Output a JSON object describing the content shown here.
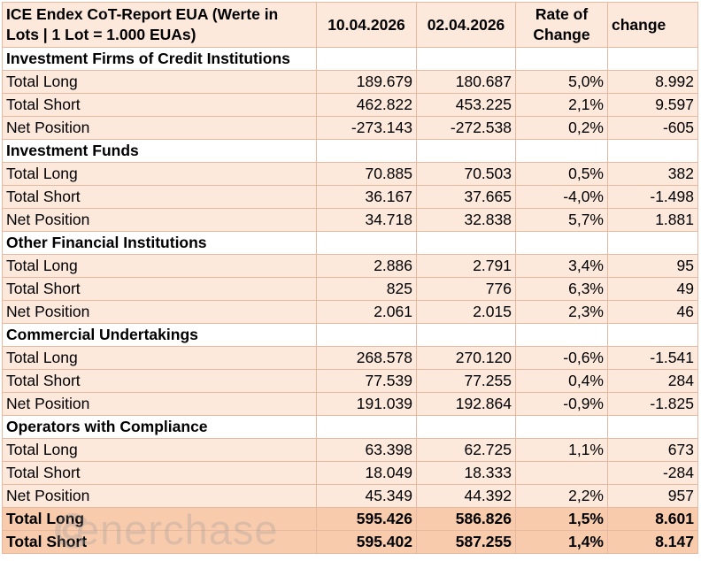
{
  "header": {
    "title": "ICE Endex CoT-Report EUA (Werte in Lots | 1 Lot = 1.000 EUAs)",
    "date1": "10.04.2026",
    "date2": "02.04.2026",
    "rate_line1": "Rate of",
    "rate_line2": "Change",
    "change": "change"
  },
  "sections": [
    {
      "name": "Investment Firms of Credit Institutions",
      "rows": [
        {
          "label": "Total Long",
          "v1": "189.679",
          "v2": "180.687",
          "rate": "5,0%",
          "change": "8.992"
        },
        {
          "label": "Total Short",
          "v1": "462.822",
          "v2": "453.225",
          "rate": "2,1%",
          "change": "9.597"
        },
        {
          "label": "Net Position",
          "v1": "-273.143",
          "v2": "-272.538",
          "rate": "0,2%",
          "change": "-605"
        }
      ]
    },
    {
      "name": "Investment Funds",
      "rows": [
        {
          "label": "Total Long",
          "v1": "70.885",
          "v2": "70.503",
          "rate": "0,5%",
          "change": "382"
        },
        {
          "label": "Total Short",
          "v1": "36.167",
          "v2": "37.665",
          "rate": "-4,0%",
          "change": "-1.498"
        },
        {
          "label": "Net Position",
          "v1": "34.718",
          "v2": "32.838",
          "rate": "5,7%",
          "change": "1.881"
        }
      ]
    },
    {
      "name": "Other Financial Institutions",
      "rows": [
        {
          "label": "Total Long",
          "v1": "2.886",
          "v2": "2.791",
          "rate": "3,4%",
          "change": "95"
        },
        {
          "label": "Total Short",
          "v1": "825",
          "v2": "776",
          "rate": "6,3%",
          "change": "49"
        },
        {
          "label": "Net Position",
          "v1": "2.061",
          "v2": "2.015",
          "rate": "2,3%",
          "change": "46"
        }
      ]
    },
    {
      "name": "Commercial Undertakings",
      "rows": [
        {
          "label": "Total Long",
          "v1": "268.578",
          "v2": "270.120",
          "rate": "-0,6%",
          "change": "-1.541"
        },
        {
          "label": "Total Short",
          "v1": "77.539",
          "v2": "77.255",
          "rate": "0,4%",
          "change": "284"
        },
        {
          "label": "Net Position",
          "v1": "191.039",
          "v2": "192.864",
          "rate": "-0,9%",
          "change": "-1.825"
        }
      ]
    },
    {
      "name": "Operators with Compliance",
      "rows": [
        {
          "label": "Total Long",
          "v1": "63.398",
          "v2": "62.725",
          "rate": "1,1%",
          "change": "673"
        },
        {
          "label": "Total Short",
          "v1": "18.049",
          "v2": "18.333",
          "rate": "",
          "change": "-284"
        },
        {
          "label": "Net Position",
          "v1": "45.349",
          "v2": "44.392",
          "rate": "2,2%",
          "change": "957"
        }
      ]
    }
  ],
  "totals": [
    {
      "label": "Total Long",
      "v1": "595.426",
      "v2": "586.826",
      "rate": "1,5%",
      "change": "8.601"
    },
    {
      "label": "Total Short",
      "v1": "595.402",
      "v2": "587.255",
      "rate": "1,4%",
      "change": "8.147"
    }
  ],
  "watermark": "enerchase",
  "colors": {
    "row_fill": "#fde9dc",
    "total_fill": "#f8cbad",
    "border": "#e6b9a0"
  }
}
